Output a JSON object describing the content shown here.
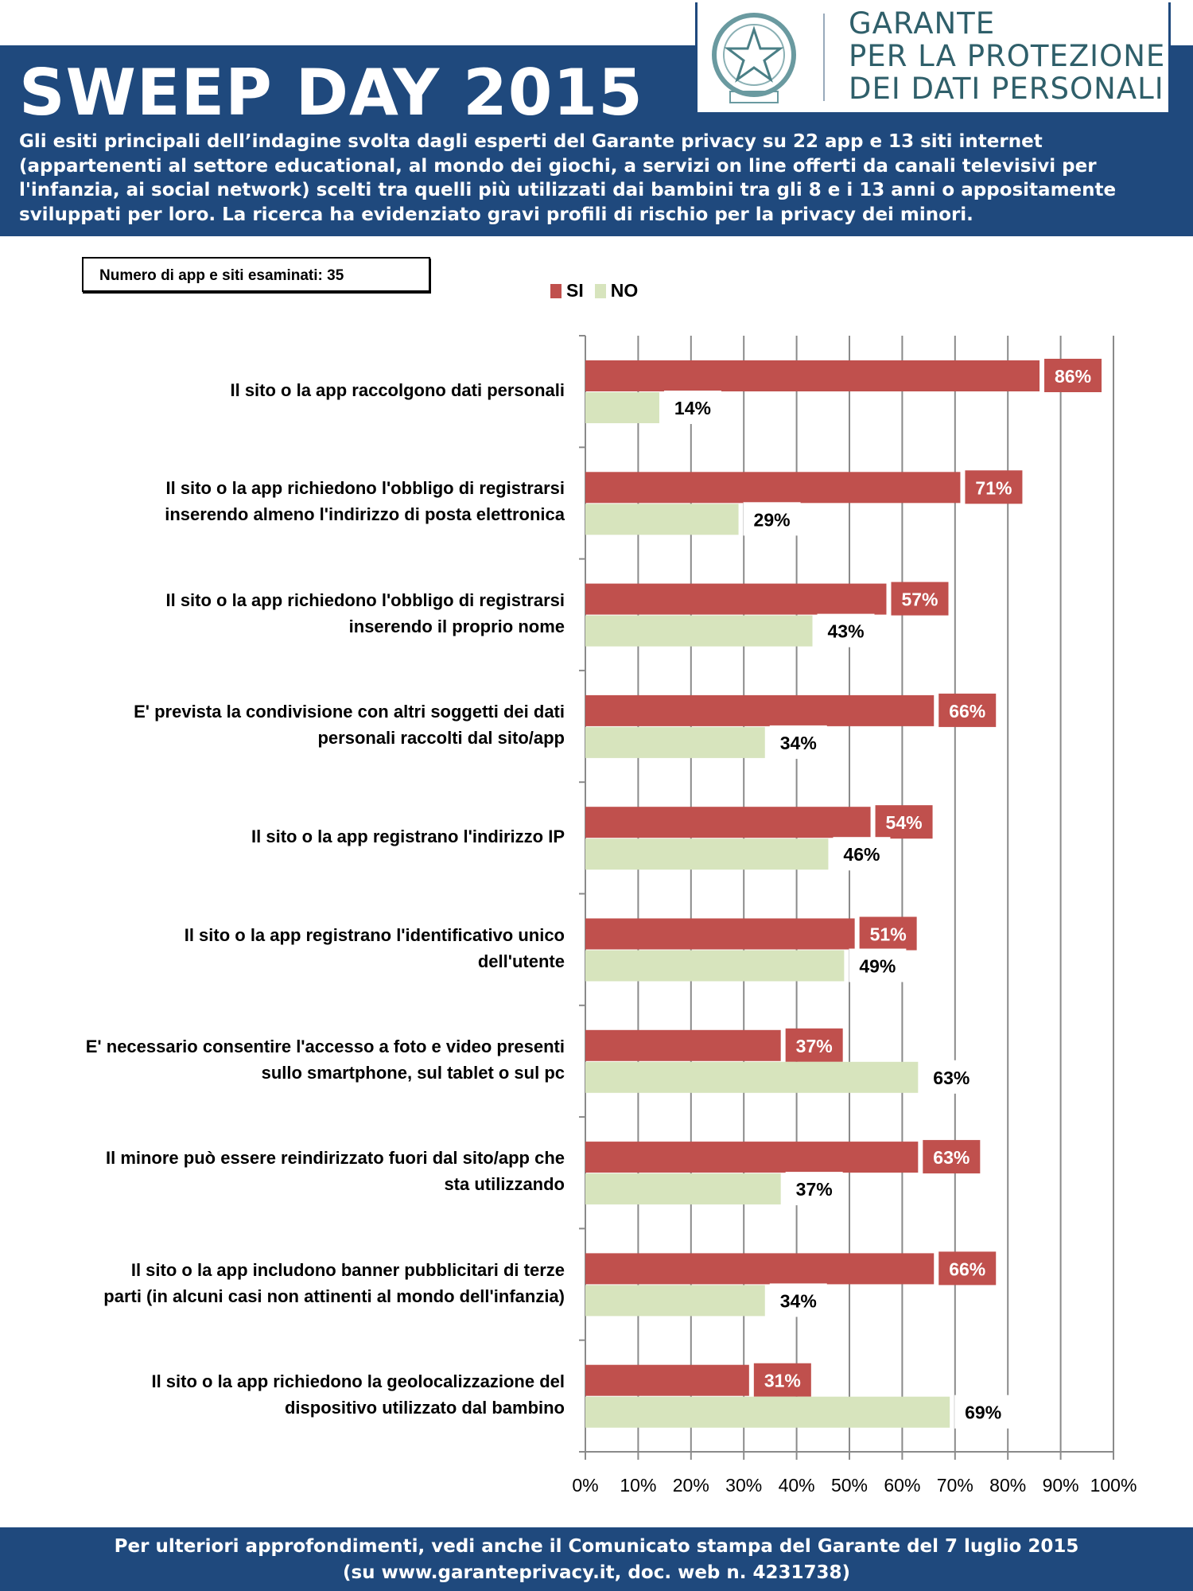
{
  "header": {
    "title": "SWEEP DAY 2015",
    "intro": "Gli esiti principali dell’indagine svolta dagli esperti del Garante privacy su 22 app e 13 siti internet (appartenenti al settore educational, al mondo dei giochi, a servizi on line offerti da canali televisivi per l'infanzia, ai social network) scelti tra quelli più utilizzati dai bambini tra gli 8 e i 13 anni o appositamente sviluppati per loro. La ricerca ha evidenziato gravi profili di rischio per la privacy dei  minori.",
    "logo_lines": [
      "GARANTE",
      "PER LA PROTEZIONE",
      "DEI DATI PERSONALI"
    ]
  },
  "count_box": "Numero di app e siti esaminati: 35",
  "colors": {
    "header": "#1f497d",
    "si": "#c0504d",
    "no": "#d7e4bd"
  },
  "chart_data": {
    "type": "bar",
    "orientation": "horizontal",
    "categories": [
      "Il sito o la app raccolgono dati personali",
      "Il sito o la app  richiedono l'obbligo di registrarsi inserendo almeno l'indirizzo di posta elettronica",
      "Il sito o la app  richiedono l'obbligo di registrarsi inserendo il proprio nome",
      "E' prevista la condivisione con altri soggetti dei dati personali raccolti dal sito/app",
      "Il sito o la app registrano l'indirizzo IP",
      "Il sito o la app registrano l'identificativo unico dell'utente",
      "E' necessario consentire l'accesso a foto e video presenti sullo smartphone, sul tablet o sul pc",
      "Il minore può essere reindirizzato fuori dal sito/app che sta utilizzando",
      "Il sito o la app includono banner pubblicitari di terze parti (in alcuni casi non attinenti al mondo dell'infanzia)",
      "Il sito o la app richiedono la geolocalizzazione del dispositivo utilizzato dal bambino"
    ],
    "category_lines": [
      [
        "Il sito o la app raccolgono dati personali"
      ],
      [
        "Il sito o la app  richiedono l'obbligo di registrarsi",
        "inserendo almeno l'indirizzo di posta elettronica"
      ],
      [
        "Il sito o la app  richiedono l'obbligo di registrarsi",
        "inserendo il proprio nome"
      ],
      [
        "E' prevista la condivisione con altri soggetti dei dati",
        "personali raccolti dal sito/app"
      ],
      [
        "Il sito o la app registrano l'indirizzo IP"
      ],
      [
        "Il sito o la app registrano l'identificativo unico",
        "dell'utente"
      ],
      [
        "E' necessario consentire l'accesso a foto e video presenti",
        "sullo smartphone, sul tablet o sul pc"
      ],
      [
        "Il minore può essere reindirizzato fuori dal sito/app che",
        "sta utilizzando"
      ],
      [
        "Il sito o la app includono banner pubblicitari di terze",
        "parti (in alcuni casi non attinenti al mondo dell'infanzia)"
      ],
      [
        "Il sito o la app richiedono la geolocalizzazione del",
        "dispositivo utilizzato dal bambino"
      ]
    ],
    "series": [
      {
        "name": "SI",
        "values": [
          86,
          71,
          57,
          66,
          54,
          51,
          37,
          63,
          66,
          31
        ],
        "labels": [
          "86%",
          "71%",
          "57%",
          "66%",
          "54%",
          "51%",
          "37%",
          "63%",
          "66%",
          "31%"
        ]
      },
      {
        "name": "NO",
        "values": [
          14,
          29,
          43,
          34,
          46,
          49,
          63,
          37,
          34,
          69
        ],
        "labels": [
          "14%",
          "29%",
          "43%",
          "34%",
          "46%",
          "49%",
          "63%",
          "37%",
          "34%",
          "69%"
        ]
      }
    ],
    "xlim": [
      0,
      100
    ],
    "xticks": [
      "0%",
      "10%",
      "20%",
      "30%",
      "40%",
      "50%",
      "60%",
      "70%",
      "80%",
      "90%",
      "100%"
    ],
    "grid": true,
    "legend": "top"
  },
  "footer": {
    "line1": "Per ulteriori approfondimenti, vedi anche il Comunicato stampa del Garante del 7 luglio 2015",
    "line2": "(su www.garanteprivacy.it, doc. web n. 4231738)"
  }
}
